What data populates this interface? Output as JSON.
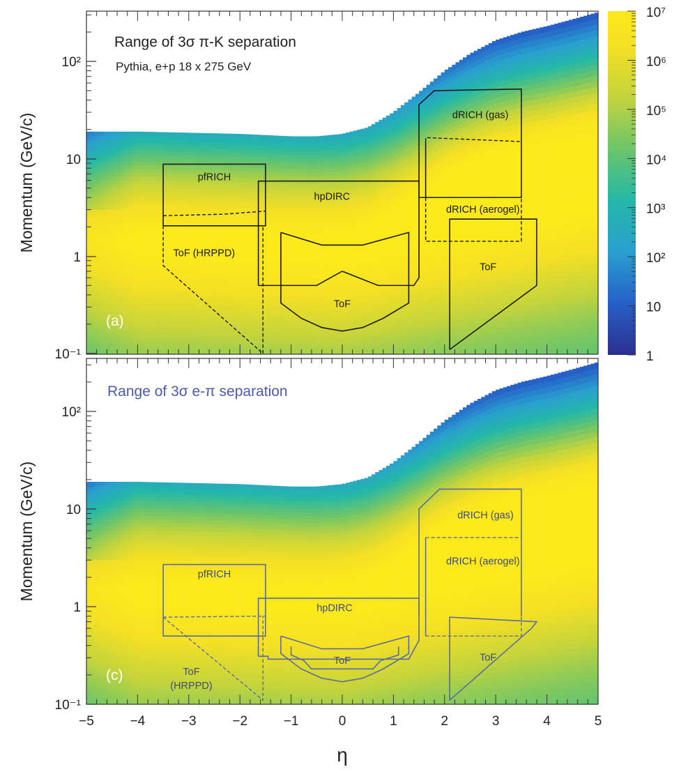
{
  "figure": {
    "xlabel": "η",
    "x_ticks": [
      "−5",
      "−4",
      "−3",
      "−2",
      "−1",
      "0",
      "1",
      "2",
      "3",
      "4",
      "5"
    ],
    "colorbar_ticks": [
      "10⁷",
      "10⁶",
      "10⁵",
      "10⁴",
      "10³",
      "10²",
      "10",
      "1"
    ]
  },
  "chart_data": [
    {
      "type": "heatmap",
      "title": "Range of 3σ π-K separation",
      "subtitle": "Pythia, e+p 18 x 275 GeV",
      "panel_label": "(a)",
      "ylabel": "Momentum (GeV/c)",
      "xlim": [
        -5,
        5
      ],
      "ylim": [
        0.1,
        300
      ],
      "yscale": "log",
      "y_ticks": [
        "10⁻¹",
        "1",
        "10",
        "10²"
      ],
      "colorbar": {
        "scale": "log",
        "range": [
          1,
          10000000
        ],
        "colormap": "viridis-like"
      },
      "overlay_color": "#1a1a1a",
      "upper_edge": [
        [
          -5,
          19
        ],
        [
          -4,
          19
        ],
        [
          -3,
          18.5
        ],
        [
          -2,
          18
        ],
        [
          -1,
          17
        ],
        [
          -0.5,
          17
        ],
        [
          0,
          18
        ],
        [
          0.5,
          21
        ],
        [
          1,
          30
        ],
        [
          1.5,
          48
        ],
        [
          2,
          80
        ],
        [
          2.5,
          120
        ],
        [
          3,
          165
        ],
        [
          3.5,
          200
        ],
        [
          4,
          230
        ],
        [
          4.5,
          270
        ],
        [
          5,
          320
        ]
      ],
      "regions": [
        {
          "name": "pfRICH",
          "label_pos": [
            -2.5,
            6
          ],
          "solid": [
            [
              [
                -3.5,
                2.05
              ],
              [
                -3.5,
                8.8
              ],
              [
                -1.5,
                8.8
              ],
              [
                -1.5,
                2.05
              ],
              [
                -3.5,
                2.05
              ]
            ]
          ],
          "dashed": [
            [
              [
                -3.5,
                2.6
              ],
              [
                -2.3,
                2.7
              ],
              [
                -1.5,
                2.9
              ]
            ]
          ]
        },
        {
          "name": "ToF (HRPPD)",
          "label_pos": [
            -2.7,
            1.0
          ],
          "dashed": [
            [
              [
                -3.5,
                2.05
              ],
              [
                -3.5,
                0.8
              ],
              [
                -1.55,
                0.1
              ],
              [
                -1.55,
                2.05
              ]
            ]
          ]
        },
        {
          "name": "hpDIRC",
          "label_pos": [
            -0.2,
            3.8
          ],
          "solid": [
            [
              [
                -1.64,
                0.5
              ],
              [
                -1.64,
                5.9
              ],
              [
                1.5,
                5.9
              ],
              [
                1.5,
                0.6
              ],
              [
                1.4,
                0.5
              ],
              [
                0.7,
                0.5
              ],
              [
                0,
                0.7
              ],
              [
                -0.5,
                0.5
              ],
              [
                -1.64,
                0.5
              ]
            ]
          ]
        },
        {
          "name": "ToF",
          "label_pos": [
            0,
            0.3
          ],
          "solid": [
            [
              [
                -1.2,
                1.75
              ],
              [
                -1.2,
                0.33
              ],
              [
                -0.8,
                0.23
              ],
              [
                -0.4,
                0.185
              ],
              [
                0,
                0.17
              ],
              [
                0.4,
                0.185
              ],
              [
                0.8,
                0.23
              ],
              [
                1.3,
                0.33
              ],
              [
                1.3,
                1.75
              ],
              [
                0.4,
                1.3
              ],
              [
                -0.4,
                1.3
              ],
              [
                -1.2,
                1.75
              ]
            ]
          ]
        },
        {
          "name": "dRICH (gas)",
          "label_pos": [
            2.7,
            26
          ],
          "solid": [
            [
              [
                1.5,
                4
              ],
              [
                1.5,
                36
              ],
              [
                1.8,
                50
              ],
              [
                3.5,
                52
              ],
              [
                3.5,
                4
              ],
              [
                1.5,
                4
              ]
            ]
          ],
          "dashed": [
            [
              [
                1.63,
                15
              ],
              [
                1.63,
                16.5
              ],
              [
                3.5,
                15
              ]
            ]
          ]
        },
        {
          "name": "dRICH (aerogel)",
          "label_pos": [
            2.75,
            2.8
          ],
          "solid": [
            [
              [
                1.63,
                4
              ],
              [
                1.63,
                15
              ]
            ]
          ],
          "dashed": [
            [
              [
                1.63,
                4
              ],
              [
                1.63,
                1.42
              ],
              [
                3.5,
                1.42
              ],
              [
                3.5,
                4
              ]
            ]
          ]
        },
        {
          "name": "ToF",
          "label_pos": [
            2.85,
            0.72
          ],
          "solid": [
            [
              [
                2.1,
                0.11
              ],
              [
                2.1,
                2.4
              ],
              [
                3.8,
                2.4
              ],
              [
                3.8,
                0.5
              ],
              [
                2.1,
                0.11
              ]
            ]
          ]
        }
      ]
    },
    {
      "type": "heatmap",
      "title": "Range of 3σ e-π separation",
      "panel_label": "(c)",
      "ylabel": "Momentum (GeV/c)",
      "xlim": [
        -5,
        5
      ],
      "ylim": [
        0.1,
        300
      ],
      "yscale": "log",
      "y_ticks": [
        "10⁻¹",
        "1",
        "10",
        "10²"
      ],
      "overlay_color": "#5b6aa0",
      "upper_edge": [
        [
          -5,
          19
        ],
        [
          -4,
          19
        ],
        [
          -3,
          18.5
        ],
        [
          -2,
          18
        ],
        [
          -1,
          17
        ],
        [
          -0.5,
          17
        ],
        [
          0,
          18
        ],
        [
          0.5,
          21
        ],
        [
          1,
          30
        ],
        [
          1.5,
          48
        ],
        [
          2,
          80
        ],
        [
          2.5,
          120
        ],
        [
          3,
          165
        ],
        [
          3.5,
          200
        ],
        [
          4,
          230
        ],
        [
          4.5,
          270
        ],
        [
          5,
          320
        ]
      ],
      "regions": [
        {
          "name": "pfRICH",
          "label_pos": [
            -2.5,
            2.0
          ],
          "solid": [
            [
              [
                -3.5,
                0.5
              ],
              [
                -3.5,
                2.7
              ],
              [
                -1.5,
                2.7
              ],
              [
                -1.5,
                0.5
              ],
              [
                -3.5,
                0.5
              ]
            ]
          ],
          "dashed": [
            [
              [
                -3.5,
                0.78
              ],
              [
                -2.5,
                0.79
              ],
              [
                -1.5,
                0.8
              ]
            ]
          ]
        },
        {
          "name": "ToF",
          "name2": "(HRPPD)",
          "label_pos": [
            -2.95,
            0.2
          ],
          "dashed": [
            [
              [
                -3.5,
                0.78
              ],
              [
                -1.55,
                0.11
              ],
              [
                -1.55,
                0.8
              ]
            ]
          ]
        },
        {
          "name": "hpDIRC",
          "label_pos": [
            -0.15,
            0.9
          ],
          "solid": [
            [
              [
                -1.64,
                0.31
              ],
              [
                -1.64,
                1.22
              ],
              [
                1.5,
                1.22
              ],
              [
                1.5,
                0.45
              ],
              [
                1.3,
                0.29
              ],
              [
                -1.45,
                0.29
              ],
              [
                -1.45,
                0.31
              ],
              [
                -1.64,
                0.31
              ]
            ]
          ]
        },
        {
          "name": "ToF",
          "label_pos": [
            0,
            0.26
          ],
          "solid": [
            [
              [
                -1.2,
                0.5
              ],
              [
                -1.2,
                0.33
              ],
              [
                -0.8,
                0.23
              ],
              [
                -0.4,
                0.185
              ],
              [
                0,
                0.17
              ],
              [
                0.4,
                0.185
              ],
              [
                0.8,
                0.23
              ],
              [
                1.3,
                0.33
              ],
              [
                1.3,
                0.5
              ],
              [
                0.4,
                0.37
              ],
              [
                -0.4,
                0.37
              ],
              [
                -1.2,
                0.5
              ]
            ],
            [
              [
                -1.0,
                0.39
              ],
              [
                -1.0,
                0.32
              ],
              [
                -0.75,
                0.28
              ],
              [
                -0.6,
                0.23
              ],
              [
                0.6,
                0.23
              ],
              [
                0.75,
                0.28
              ],
              [
                1.1,
                0.32
              ],
              [
                1.1,
                0.39
              ]
            ]
          ]
        },
        {
          "name": "dRICH (gas)",
          "label_pos": [
            2.8,
            8
          ],
          "solid": [
            [
              [
                1.5,
                0.8
              ],
              [
                1.5,
                10
              ],
              [
                1.9,
                16
              ],
              [
                3.5,
                16
              ],
              [
                3.5,
                0.8
              ]
            ]
          ],
          "dashed": [
            [
              [
                1.63,
                5.1
              ],
              [
                3.5,
                5.1
              ]
            ]
          ]
        },
        {
          "name": "dRICH (aerogel)",
          "label_pos": [
            2.75,
            2.7
          ],
          "solid": [
            [
              [
                1.63,
                0.5
              ],
              [
                1.63,
                5.1
              ]
            ]
          ],
          "dashed": [
            [
              [
                1.63,
                0.5
              ],
              [
                3.5,
                0.5
              ],
              [
                3.5,
                0.8
              ]
            ]
          ]
        },
        {
          "name": "ToF",
          "label_pos": [
            2.85,
            0.28
          ],
          "solid": [
            [
              [
                2.1,
                0.11
              ],
              [
                2.1,
                0.78
              ],
              [
                3.8,
                0.7
              ],
              [
                3.7,
                0.6
              ],
              [
                2.1,
                0.11
              ]
            ]
          ]
        }
      ]
    }
  ]
}
